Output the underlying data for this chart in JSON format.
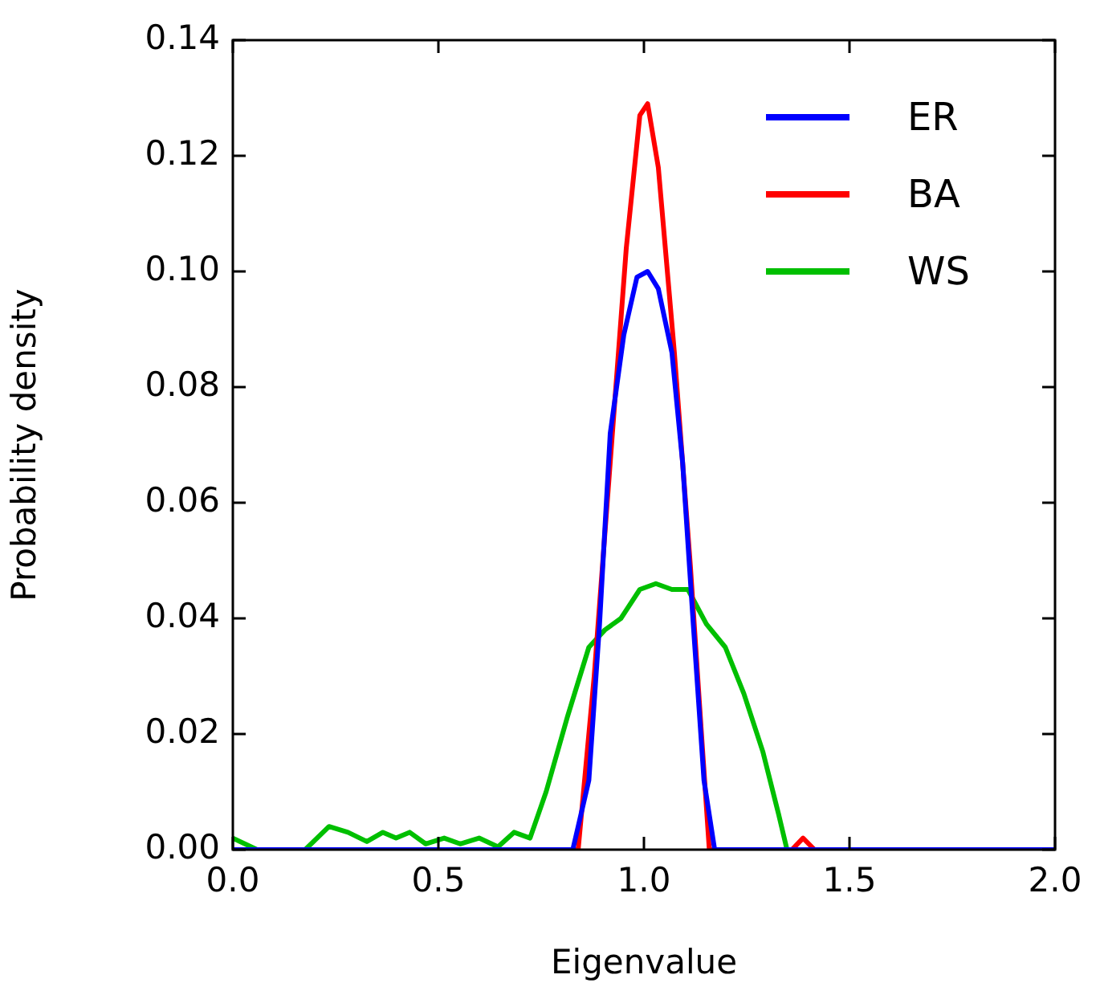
{
  "chart_data": {
    "type": "line",
    "xlabel": "Eigenvalue",
    "ylabel": "Probability density",
    "xlim": [
      0,
      2
    ],
    "xticks": [
      {
        "value": 0,
        "label": "0.0"
      },
      {
        "value": 0.5,
        "label": "0.5"
      },
      {
        "value": 1,
        "label": "1.0"
      },
      {
        "value": 1.5,
        "label": "1.5"
      },
      {
        "value": 2,
        "label": "2.0"
      }
    ],
    "ylim": [
      0,
      0.14
    ],
    "yticks": [
      {
        "value": 0,
        "label": "0.00"
      },
      {
        "value": 0.02,
        "label": "0.02"
      },
      {
        "value": 0.04,
        "label": "0.04"
      },
      {
        "value": 0.06,
        "label": "0.06"
      },
      {
        "value": 0.08,
        "label": "0.08"
      },
      {
        "value": 0.1,
        "label": "0.10"
      },
      {
        "value": 0.12,
        "label": "0.12"
      },
      {
        "value": 0.14,
        "label": "0.14"
      }
    ],
    "grid": false,
    "legend": "top right",
    "marker": "none",
    "line_style": "solid",
    "series": [
      {
        "name": "ER",
        "color": "#0000ff",
        "x": [
          0,
          0.827,
          0.866,
          0.892,
          0.918,
          0.951,
          0.983,
          1.009,
          1.035,
          1.068,
          1.094,
          1.12,
          1.146,
          1.172,
          2
        ],
        "values": [
          0,
          0,
          0.012,
          0.039,
          0.072,
          0.089,
          0.099,
          0.1,
          0.097,
          0.086,
          0.067,
          0.039,
          0.012,
          0,
          0
        ]
      },
      {
        "name": "BA",
        "color": "#ff0000",
        "x": [
          0,
          0.84,
          0.879,
          0.918,
          0.957,
          0.99,
          1.009,
          1.035,
          1.074,
          1.113,
          1.139,
          1.159,
          1.36,
          1.387,
          1.415,
          2
        ],
        "values": [
          0,
          0,
          0.03,
          0.067,
          0.104,
          0.127,
          0.129,
          0.118,
          0.086,
          0.049,
          0.021,
          0,
          0,
          0.002,
          0,
          0
        ]
      },
      {
        "name": "WS",
        "color": "#00bf00",
        "x": [
          0,
          0.059,
          0.176,
          0.234,
          0.28,
          0.326,
          0.365,
          0.397,
          0.43,
          0.469,
          0.514,
          0.553,
          0.599,
          0.645,
          0.684,
          0.723,
          0.762,
          0.814,
          0.866,
          0.905,
          0.944,
          0.99,
          1.029,
          1.068,
          1.107,
          1.152,
          1.198,
          1.243,
          1.289,
          1.328,
          1.348,
          2
        ],
        "values": [
          0.002,
          0,
          0,
          0.004,
          0.003,
          0.0014,
          0.003,
          0.002,
          0.003,
          0.001,
          0.002,
          0.001,
          0.002,
          0.0005,
          0.003,
          0.002,
          0.01,
          0.023,
          0.035,
          0.038,
          0.04,
          0.045,
          0.046,
          0.045,
          0.045,
          0.039,
          0.035,
          0.027,
          0.017,
          0.006,
          0,
          0
        ]
      }
    ]
  }
}
